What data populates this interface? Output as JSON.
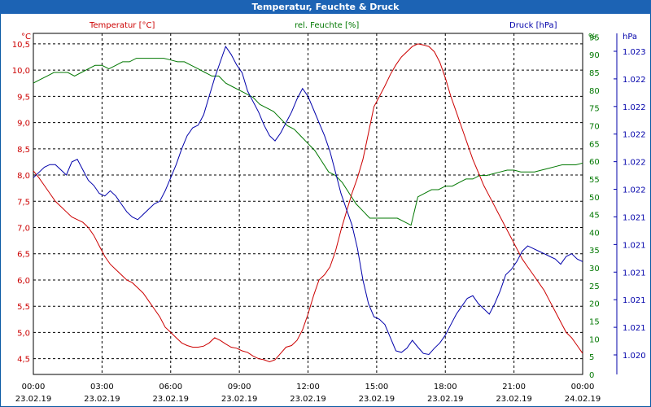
{
  "window": {
    "title": "Temperatur, Feuchte & Druck"
  },
  "chart_data": {
    "type": "line",
    "title": "Temperatur, Feuchte & Druck",
    "grid": true,
    "x": {
      "range_hours": [
        0,
        24
      ],
      "tick_hours": [
        0,
        3,
        6,
        9,
        12,
        15,
        18,
        21,
        24
      ],
      "tick_times": [
        "00:00",
        "03:00",
        "06:00",
        "09:00",
        "12:00",
        "15:00",
        "18:00",
        "21:00",
        "00:00"
      ],
      "tick_dates": [
        "23.02.19",
        "23.02.19",
        "23.02.19",
        "23.02.19",
        "23.02.19",
        "23.02.19",
        "23.02.19",
        "23.02.19",
        "24.02.19"
      ]
    },
    "axes": {
      "temperature": {
        "name": "Temperatur [°C]",
        "unit": "°C",
        "range": [
          4.2,
          10.7
        ],
        "side": "left",
        "ticks": [
          "4,5",
          "5,0",
          "5,5",
          "6,0",
          "6,5",
          "7,0",
          "7,5",
          "8,0",
          "8,5",
          "9,0",
          "9,5",
          "10,0",
          "10,5"
        ],
        "color": "#cc0000"
      },
      "humidity": {
        "name": "rel. Feuchte [%]",
        "unit": "%",
        "range": [
          0,
          96
        ],
        "side": "right",
        "ticks": [
          "0",
          "5",
          "10",
          "15",
          "20",
          "25",
          "30",
          "35",
          "40",
          "45",
          "50",
          "55",
          "60",
          "65",
          "70",
          "75",
          "80",
          "85",
          "90",
          "95"
        ],
        "tick_axis_label": "%",
        "color": "#007700"
      },
      "pressure": {
        "name": "Druck [hPa]",
        "unit": "hPa",
        "side": "right",
        "ticks": [
          "1.020",
          "1.021",
          "1.021",
          "1.021",
          "1.021",
          "1.021",
          "1.022",
          "1.022",
          "1.022",
          "1.022",
          "1.022",
          "1.023"
        ],
        "color": "#0000aa"
      }
    },
    "series": [
      {
        "name": "Temperatur [°C]",
        "axis": "temperature",
        "color": "#cc0000",
        "points": [
          [
            0,
            8.08
          ],
          [
            0.25,
            7.95
          ],
          [
            0.5,
            7.8
          ],
          [
            0.75,
            7.65
          ],
          [
            1,
            7.5
          ],
          [
            1.25,
            7.4
          ],
          [
            1.5,
            7.3
          ],
          [
            1.75,
            7.2
          ],
          [
            2,
            7.15
          ],
          [
            2.25,
            7.1
          ],
          [
            2.5,
            7.0
          ],
          [
            2.75,
            6.85
          ],
          [
            3,
            6.65
          ],
          [
            3.25,
            6.45
          ],
          [
            3.5,
            6.3
          ],
          [
            3.75,
            6.2
          ],
          [
            4,
            6.1
          ],
          [
            4.25,
            6.0
          ],
          [
            4.5,
            5.95
          ],
          [
            4.75,
            5.85
          ],
          [
            5,
            5.75
          ],
          [
            5.25,
            5.6
          ],
          [
            5.5,
            5.45
          ],
          [
            5.75,
            5.3
          ],
          [
            6,
            5.1
          ],
          [
            6.25,
            5.0
          ],
          [
            6.5,
            4.9
          ],
          [
            6.75,
            4.8
          ],
          [
            7,
            4.75
          ],
          [
            7.25,
            4.72
          ],
          [
            7.5,
            4.72
          ],
          [
            7.75,
            4.74
          ],
          [
            8,
            4.8
          ],
          [
            8.25,
            4.9
          ],
          [
            8.5,
            4.85
          ],
          [
            8.75,
            4.78
          ],
          [
            9,
            4.72
          ],
          [
            9.25,
            4.7
          ],
          [
            9.5,
            4.65
          ],
          [
            9.75,
            4.62
          ],
          [
            10,
            4.55
          ],
          [
            10.25,
            4.5
          ],
          [
            10.5,
            4.48
          ],
          [
            10.75,
            4.44
          ],
          [
            11,
            4.48
          ],
          [
            11.25,
            4.6
          ],
          [
            11.5,
            4.72
          ],
          [
            11.75,
            4.75
          ],
          [
            12,
            4.85
          ],
          [
            12.25,
            5.05
          ],
          [
            12.5,
            5.35
          ],
          [
            12.75,
            5.7
          ],
          [
            13,
            6.0
          ],
          [
            13.25,
            6.1
          ],
          [
            13.5,
            6.25
          ],
          [
            13.75,
            6.55
          ],
          [
            14,
            6.95
          ],
          [
            14.25,
            7.3
          ],
          [
            14.5,
            7.65
          ],
          [
            14.75,
            7.95
          ],
          [
            15,
            8.3
          ],
          [
            15.25,
            8.8
          ],
          [
            15.5,
            9.3
          ],
          [
            15.75,
            9.5
          ],
          [
            16,
            9.7
          ],
          [
            16.25,
            9.92
          ],
          [
            16.5,
            10.1
          ],
          [
            16.75,
            10.25
          ],
          [
            17,
            10.35
          ],
          [
            17.25,
            10.45
          ],
          [
            17.5,
            10.5
          ],
          [
            17.75,
            10.48
          ],
          [
            18,
            10.45
          ],
          [
            18.25,
            10.35
          ],
          [
            18.5,
            10.15
          ],
          [
            18.75,
            9.85
          ],
          [
            19,
            9.5
          ],
          [
            19.25,
            9.2
          ],
          [
            19.5,
            8.9
          ],
          [
            19.75,
            8.6
          ],
          [
            20,
            8.3
          ],
          [
            20.25,
            8.05
          ],
          [
            20.5,
            7.8
          ],
          [
            20.75,
            7.6
          ],
          [
            21,
            7.4
          ],
          [
            21.25,
            7.2
          ],
          [
            21.5,
            7.0
          ],
          [
            21.75,
            6.8
          ],
          [
            22,
            6.6
          ],
          [
            22.25,
            6.4
          ],
          [
            22.5,
            6.25
          ],
          [
            22.75,
            6.1
          ],
          [
            23,
            5.95
          ],
          [
            23.25,
            5.8
          ],
          [
            23.5,
            5.6
          ],
          [
            23.75,
            5.4
          ],
          [
            24,
            5.2
          ],
          [
            24.25,
            5.0
          ],
          [
            24.5,
            4.9
          ],
          [
            24.75,
            4.75
          ],
          [
            25,
            4.6
          ]
        ]
      },
      {
        "name": "rel. Feuchte [%]",
        "axis": "humidity",
        "color": "#007700",
        "points": [
          [
            0,
            82
          ],
          [
            0.5,
            83
          ],
          [
            1,
            84
          ],
          [
            1.5,
            85
          ],
          [
            2,
            85
          ],
          [
            2.5,
            85
          ],
          [
            3,
            84
          ],
          [
            3.5,
            85
          ],
          [
            4,
            86
          ],
          [
            4.5,
            87
          ],
          [
            5,
            87
          ],
          [
            5.5,
            86
          ],
          [
            6,
            87
          ],
          [
            6.5,
            88
          ],
          [
            7,
            88
          ],
          [
            7.5,
            89
          ],
          [
            8,
            89
          ],
          [
            8.5,
            89
          ],
          [
            9,
            89
          ],
          [
            9.5,
            89
          ],
          [
            10,
            88.5
          ],
          [
            10.5,
            88
          ],
          [
            11,
            88
          ],
          [
            11.5,
            87
          ],
          [
            12,
            86
          ],
          [
            12.5,
            85
          ],
          [
            13,
            84
          ],
          [
            13.5,
            84
          ],
          [
            14,
            82
          ],
          [
            14.5,
            81
          ],
          [
            15,
            80
          ],
          [
            15.5,
            79
          ],
          [
            16,
            78
          ],
          [
            16.5,
            76
          ],
          [
            17,
            75
          ],
          [
            17.5,
            74
          ],
          [
            18,
            72
          ],
          [
            18.5,
            70
          ],
          [
            19,
            69
          ],
          [
            19.5,
            67
          ],
          [
            20,
            65
          ],
          [
            20.5,
            63
          ],
          [
            21,
            60
          ],
          [
            21.5,
            57
          ],
          [
            22,
            56
          ],
          [
            22.5,
            54
          ],
          [
            23,
            51
          ],
          [
            23.5,
            48
          ],
          [
            24,
            46
          ],
          [
            24.5,
            44
          ],
          [
            25,
            44
          ],
          [
            25.5,
            44
          ],
          [
            26,
            44
          ],
          [
            26.5,
            44
          ],
          [
            27,
            43
          ],
          [
            27.5,
            42
          ],
          [
            28,
            50
          ],
          [
            28.5,
            51
          ],
          [
            29,
            52
          ],
          [
            29.5,
            52
          ],
          [
            30,
            53
          ],
          [
            30.5,
            53
          ],
          [
            31,
            54
          ],
          [
            31.5,
            55
          ],
          [
            32,
            55
          ],
          [
            32.5,
            56
          ],
          [
            33,
            56
          ],
          [
            33.5,
            56.5
          ],
          [
            34,
            57
          ],
          [
            34.5,
            57.5
          ],
          [
            35,
            57.5
          ],
          [
            35.5,
            57
          ],
          [
            36,
            57
          ],
          [
            36.5,
            57
          ],
          [
            37,
            57.5
          ],
          [
            37.5,
            58
          ],
          [
            38,
            58.5
          ],
          [
            38.5,
            59
          ],
          [
            39,
            59
          ],
          [
            39.5,
            59
          ],
          [
            40,
            59.5
          ]
        ]
      },
      {
        "name": "Druck [hPa]",
        "axis": "pressure",
        "color": "#0000aa",
        "points": [
          [
            0,
            7.95
          ],
          [
            0.25,
            8.05
          ],
          [
            0.5,
            8.15
          ],
          [
            0.75,
            8.2
          ],
          [
            1,
            8.2
          ],
          [
            1.25,
            8.1
          ],
          [
            1.5,
            8.0
          ],
          [
            1.75,
            8.25
          ],
          [
            2,
            8.3
          ],
          [
            2.25,
            8.1
          ],
          [
            2.5,
            7.9
          ],
          [
            2.75,
            7.8
          ],
          [
            3,
            7.65
          ],
          [
            3.25,
            7.6
          ],
          [
            3.5,
            7.7
          ],
          [
            3.75,
            7.6
          ],
          [
            4,
            7.45
          ],
          [
            4.25,
            7.3
          ],
          [
            4.5,
            7.2
          ],
          [
            4.75,
            7.15
          ],
          [
            5,
            7.25
          ],
          [
            5.25,
            7.35
          ],
          [
            5.5,
            7.45
          ],
          [
            5.75,
            7.5
          ],
          [
            6,
            7.7
          ],
          [
            6.25,
            7.95
          ],
          [
            6.5,
            8.2
          ],
          [
            6.75,
            8.5
          ],
          [
            7,
            8.75
          ],
          [
            7.25,
            8.9
          ],
          [
            7.5,
            8.95
          ],
          [
            7.75,
            9.15
          ],
          [
            8,
            9.5
          ],
          [
            8.25,
            9.85
          ],
          [
            8.5,
            10.15
          ],
          [
            8.75,
            10.45
          ],
          [
            9,
            10.3
          ],
          [
            9.25,
            10.1
          ],
          [
            9.5,
            9.95
          ],
          [
            9.75,
            9.6
          ],
          [
            10,
            9.4
          ],
          [
            10.25,
            9.2
          ],
          [
            10.5,
            8.95
          ],
          [
            10.75,
            8.75
          ],
          [
            11,
            8.65
          ],
          [
            11.25,
            8.8
          ],
          [
            11.5,
            9.0
          ],
          [
            11.75,
            9.2
          ],
          [
            12,
            9.45
          ],
          [
            12.25,
            9.65
          ],
          [
            12.5,
            9.5
          ],
          [
            12.75,
            9.25
          ],
          [
            13,
            9.0
          ],
          [
            13.25,
            8.75
          ],
          [
            13.5,
            8.45
          ],
          [
            13.75,
            8.05
          ],
          [
            14,
            7.65
          ],
          [
            14.25,
            7.35
          ],
          [
            14.5,
            7.05
          ],
          [
            14.75,
            6.6
          ],
          [
            15,
            6.0
          ],
          [
            15.25,
            5.55
          ],
          [
            15.5,
            5.3
          ],
          [
            15.75,
            5.25
          ],
          [
            16,
            5.15
          ],
          [
            16.25,
            4.9
          ],
          [
            16.5,
            4.65
          ],
          [
            16.75,
            4.62
          ],
          [
            17,
            4.7
          ],
          [
            17.25,
            4.85
          ],
          [
            17.5,
            4.72
          ],
          [
            17.75,
            4.6
          ],
          [
            18,
            4.58
          ],
          [
            18.25,
            4.7
          ],
          [
            18.5,
            4.8
          ],
          [
            18.75,
            4.95
          ],
          [
            19,
            5.15
          ],
          [
            19.25,
            5.35
          ],
          [
            19.5,
            5.5
          ],
          [
            19.75,
            5.65
          ],
          [
            20,
            5.7
          ],
          [
            20.25,
            5.55
          ],
          [
            20.5,
            5.45
          ],
          [
            20.75,
            5.35
          ],
          [
            21,
            5.55
          ],
          [
            21.25,
            5.8
          ],
          [
            21.5,
            6.1
          ],
          [
            21.75,
            6.2
          ],
          [
            22,
            6.35
          ],
          [
            22.25,
            6.55
          ],
          [
            22.5,
            6.65
          ],
          [
            22.75,
            6.6
          ],
          [
            23,
            6.55
          ],
          [
            23.25,
            6.5
          ],
          [
            23.5,
            6.45
          ],
          [
            23.75,
            6.4
          ],
          [
            24,
            6.3
          ],
          [
            24.25,
            6.45
          ],
          [
            24.5,
            6.5
          ],
          [
            24.75,
            6.4
          ],
          [
            25,
            6.35
          ]
        ]
      }
    ]
  }
}
